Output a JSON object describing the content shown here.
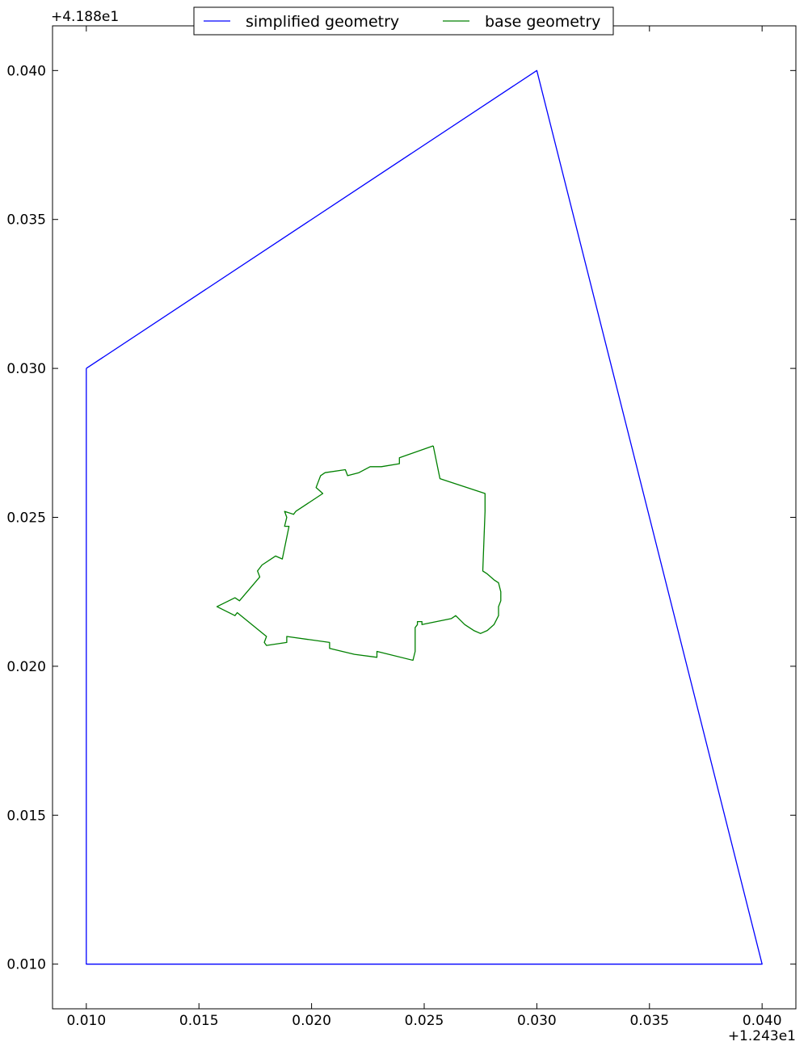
{
  "chart_data": {
    "type": "line",
    "title": "",
    "xlabel": "",
    "ylabel": "",
    "x_offset_label": "+1.243e1",
    "y_offset_label": "+4.188e1",
    "xlim": [
      0.0085,
      0.0415
    ],
    "ylim": [
      0.0085,
      0.0415
    ],
    "x_ticks": [
      0.01,
      0.015,
      0.02,
      0.025,
      0.03,
      0.035,
      0.04
    ],
    "y_ticks": [
      0.01,
      0.015,
      0.02,
      0.025,
      0.03,
      0.035,
      0.04
    ],
    "x_tick_labels": [
      "0.010",
      "0.015",
      "0.020",
      "0.025",
      "0.030",
      "0.035",
      "0.040"
    ],
    "y_tick_labels": [
      "0.010",
      "0.015",
      "0.020",
      "0.025",
      "0.030",
      "0.035",
      "0.040"
    ],
    "grid": false,
    "legend_position": "top-center",
    "series": [
      {
        "name": "simplified geometry",
        "color": "#0000ff",
        "x": [
          0.01,
          0.03,
          0.04,
          0.01,
          0.01
        ],
        "y": [
          0.03,
          0.04,
          0.01,
          0.01,
          0.03
        ]
      },
      {
        "name": "base geometry",
        "color": "#008000",
        "x": [
          0.0254,
          0.0257,
          0.0277,
          0.0277,
          0.0276,
          0.0278,
          0.0281,
          0.0283,
          0.0284,
          0.0284,
          0.0283,
          0.0283,
          0.0281,
          0.0278,
          0.0275,
          0.0272,
          0.0268,
          0.0264,
          0.0262,
          0.0249,
          0.0249,
          0.0247,
          0.0247,
          0.0246,
          0.0246,
          0.0246,
          0.0245,
          0.0229,
          0.0229,
          0.0219,
          0.0208,
          0.0208,
          0.0189,
          0.0189,
          0.018,
          0.0179,
          0.018,
          0.0167,
          0.0166,
          0.0158,
          0.0166,
          0.0168,
          0.0177,
          0.0176,
          0.0178,
          0.0184,
          0.0187,
          0.019,
          0.0188,
          0.0189,
          0.0188,
          0.0192,
          0.0193,
          0.0205,
          0.0202,
          0.0203,
          0.0204,
          0.0206,
          0.0215,
          0.0216,
          0.0221,
          0.0221,
          0.0226,
          0.0229,
          0.0231,
          0.0239,
          0.0239,
          0.0254
        ],
        "y": [
          0.0274,
          0.0263,
          0.0258,
          0.0252,
          0.0232,
          0.0231,
          0.0229,
          0.0228,
          0.0225,
          0.0222,
          0.022,
          0.0217,
          0.0214,
          0.0212,
          0.0211,
          0.0212,
          0.0214,
          0.0217,
          0.0216,
          0.0214,
          0.0215,
          0.0215,
          0.0214,
          0.0213,
          0.0206,
          0.0205,
          0.0202,
          0.0205,
          0.0203,
          0.0204,
          0.0206,
          0.0208,
          0.021,
          0.0208,
          0.0207,
          0.0208,
          0.021,
          0.0218,
          0.0217,
          0.022,
          0.0223,
          0.0222,
          0.023,
          0.0232,
          0.0234,
          0.0237,
          0.0236,
          0.0247,
          0.0247,
          0.025,
          0.0252,
          0.0251,
          0.0252,
          0.0258,
          0.026,
          0.0262,
          0.0264,
          0.0265,
          0.0266,
          0.0264,
          0.0265,
          0.0265,
          0.0267,
          0.0267,
          0.0267,
          0.0268,
          0.027,
          0.0274
        ]
      }
    ]
  }
}
